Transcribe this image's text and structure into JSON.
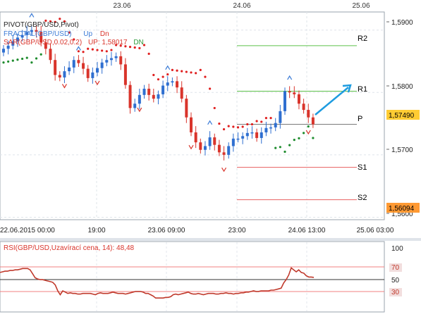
{
  "top_dates": [
    "23.06",
    "24.06",
    "25.06"
  ],
  "legend": {
    "pivot": "PIVOT(GBP/USD,Pivot)",
    "fractal_name": "FRACTAL(GBP/USD)",
    "fractal_up": "Up",
    "fractal_dn": "Dn",
    "sar_name": "SAR(GBP/USD,0.02,0.2)",
    "sar_up": "UP: 1,58017",
    "sar_dn": "DN"
  },
  "pivot_levels": [
    {
      "name": "R2",
      "value": 1.5875,
      "color": "#5cc04a"
    },
    {
      "name": "R1",
      "value": 1.5802,
      "color": "#5cc04a"
    },
    {
      "name": "P",
      "value": 1.5749,
      "color": "#7a7a7a"
    },
    {
      "name": "S1",
      "value": 1.568,
      "color": "#e86060"
    },
    {
      "name": "S2",
      "value": 1.5628,
      "color": "#e86060"
    }
  ],
  "price_axis": {
    "ticks": [
      "1,5900",
      "1,5800",
      "1,5700",
      "1,5600"
    ],
    "current_price": "1,57490",
    "current_price_color": "#ffcc33",
    "low_marker": "1,56094",
    "low_marker_color": "#ff9933"
  },
  "time_axis": [
    "22.06.2015 00:00",
    "19:00",
    "23.06 09:00",
    "23:00",
    "24.06 13:00",
    "25.06 03:00"
  ],
  "rsi": {
    "title": "RSI(GBP/USD,Uzavírací cena, 14): 48,48",
    "value": 48.48,
    "ticks": [
      "100",
      "70",
      "50",
      "30"
    ],
    "levels": [
      70,
      50,
      30
    ],
    "values": [
      56,
      57,
      58,
      58,
      59,
      59,
      60,
      60,
      61,
      62,
      62,
      62,
      60,
      54,
      48,
      46,
      45,
      45,
      44,
      43,
      42,
      41,
      37,
      28,
      22,
      28,
      26,
      24,
      25,
      24,
      24,
      23,
      23,
      24,
      24,
      24,
      24,
      23,
      22,
      24,
      25,
      24,
      24,
      24,
      25,
      26,
      25,
      24,
      24,
      24,
      23,
      24,
      25,
      26,
      27,
      27,
      27,
      26,
      24,
      24,
      22,
      20,
      17,
      17,
      17,
      17,
      18,
      18,
      19,
      22,
      23,
      22,
      23,
      24,
      25,
      26,
      24,
      23,
      23,
      24,
      23,
      22,
      23,
      24,
      24,
      24,
      23,
      23,
      24,
      24,
      25,
      24,
      24,
      23,
      24,
      24,
      25,
      25,
      26,
      26,
      27,
      28,
      27,
      27,
      28,
      28,
      28,
      28,
      29,
      29,
      30,
      31,
      32,
      40,
      45,
      52,
      63,
      60,
      57,
      60,
      56,
      55,
      51,
      49,
      49,
      48.5
    ]
  },
  "chart_data": {
    "type": "line",
    "title": "",
    "series": [
      {
        "values": [
          1.587,
          1.5875,
          1.5882,
          1.5888,
          1.5892,
          1.5897,
          1.59,
          1.5897,
          1.588,
          1.587,
          1.5852,
          1.5828,
          1.5824,
          1.5834,
          1.584,
          1.5852,
          1.5847,
          1.5838,
          1.5823,
          1.5832,
          1.5839,
          1.5848,
          1.5852,
          1.5855,
          1.5858,
          1.5845,
          1.5812,
          1.5775,
          1.5782,
          1.5796,
          1.5806,
          1.5796,
          1.579,
          1.5797,
          1.5811,
          1.5816,
          1.5818,
          1.5808,
          1.579,
          1.576,
          1.5736,
          1.572,
          1.5708,
          1.5714,
          1.5728,
          1.5716,
          1.5704,
          1.57,
          1.5714,
          1.5726,
          1.5726,
          1.573,
          1.5735,
          1.5736,
          1.5727,
          1.5736,
          1.5743,
          1.5744,
          1.5751,
          1.577,
          1.5802,
          1.58,
          1.5797,
          1.5782,
          1.5772,
          1.576,
          1.5749
        ]
      }
    ],
    "x_ticks": [
      "22.06.2015 00:00",
      "19:00",
      "23.06 09:00",
      "23:00",
      "24.06 13:00",
      "25.06 03:00"
    ],
    "y_ticks": [
      "1,5900",
      "1,5800",
      "1,5700",
      "1,5600"
    ],
    "ylim": [
      1.5596,
      1.5929
    ],
    "grid": true
  }
}
